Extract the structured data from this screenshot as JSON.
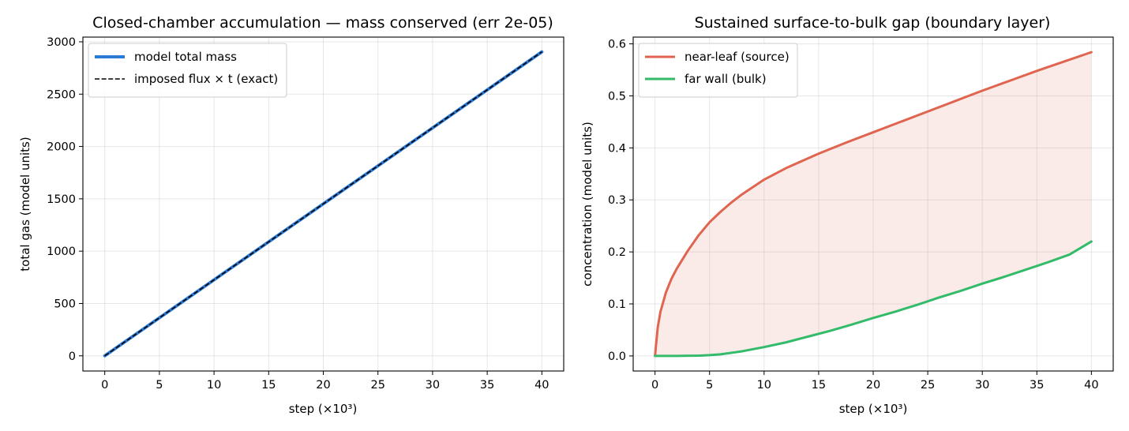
{
  "chart_data": [
    {
      "type": "line",
      "title": "Closed-chamber accumulation — mass conserved (err 2e-05)",
      "xlabel": "step (×10³)",
      "ylabel": "total gas (model units)",
      "xlim": [
        -2,
        42
      ],
      "ylim": [
        -145,
        3045
      ],
      "xticks": [
        0,
        5,
        10,
        15,
        20,
        25,
        30,
        35,
        40
      ],
      "yticks": [
        0,
        500,
        1000,
        1500,
        2000,
        2500,
        3000
      ],
      "grid": true,
      "legend_position": "upper-left",
      "series": [
        {
          "name": "model total mass",
          "color": "#2b7bd6",
          "style": "solid",
          "x": [
            0,
            5,
            10,
            15,
            20,
            25,
            30,
            35,
            40
          ],
          "y": [
            0,
            363,
            726,
            1089,
            1452,
            1815,
            2178,
            2541,
            2904
          ]
        },
        {
          "name": "imposed flux × t (exact)",
          "color": "#000000",
          "style": "dashed",
          "x": [
            0,
            5,
            10,
            15,
            20,
            25,
            30,
            35,
            40
          ],
          "y": [
            0,
            363,
            726,
            1089,
            1452,
            1815,
            2178,
            2541,
            2904
          ]
        }
      ]
    },
    {
      "type": "line",
      "title": "Sustained surface-to-bulk gap (boundary layer)",
      "xlabel": "step (×10³)",
      "ylabel": "concentration (model units)",
      "xlim": [
        -2,
        42
      ],
      "ylim": [
        -0.029,
        0.613
      ],
      "xticks": [
        0,
        5,
        10,
        15,
        20,
        25,
        30,
        35,
        40
      ],
      "yticks": [
        0.0,
        0.1,
        0.2,
        0.3,
        0.4,
        0.5,
        0.6
      ],
      "grid": true,
      "legend_position": "upper-left",
      "fill_between": {
        "upper": "near-leaf (source)",
        "lower": "far wall (bulk)",
        "color": "#e06550"
      },
      "series": [
        {
          "name": "near-leaf (source)",
          "color": "#e06550",
          "style": "solid",
          "x": [
            0,
            0.25,
            0.5,
            1,
            1.5,
            2,
            3,
            4,
            5,
            6,
            7,
            8,
            10,
            12,
            15,
            17.5,
            20,
            22.5,
            25,
            27.5,
            30,
            32.5,
            35,
            37.5,
            40
          ],
          "y": [
            0.0,
            0.055,
            0.085,
            0.122,
            0.148,
            0.168,
            0.202,
            0.232,
            0.257,
            0.277,
            0.295,
            0.311,
            0.339,
            0.361,
            0.389,
            0.41,
            0.43,
            0.45,
            0.47,
            0.49,
            0.51,
            0.529,
            0.548,
            0.566,
            0.584
          ]
        },
        {
          "name": "far wall (bulk)",
          "color": "#33bb6a",
          "style": "solid",
          "x": [
            0,
            2,
            4,
            5,
            6,
            7,
            8,
            9,
            10,
            12,
            14,
            16,
            18,
            20,
            22,
            24,
            26,
            28,
            30,
            32,
            34,
            36,
            38,
            40
          ],
          "y": [
            0.0,
            0.0,
            0.0005,
            0.0015,
            0.003,
            0.006,
            0.009,
            0.013,
            0.017,
            0.026,
            0.037,
            0.048,
            0.06,
            0.073,
            0.085,
            0.098,
            0.112,
            0.125,
            0.139,
            0.152,
            0.166,
            0.18,
            0.195,
            0.22
          ]
        }
      ]
    }
  ]
}
